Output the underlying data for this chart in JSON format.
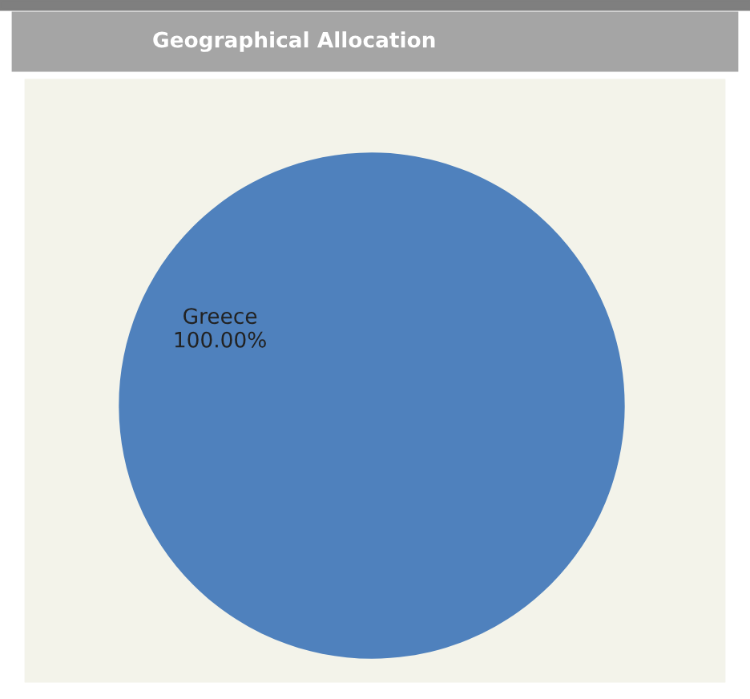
{
  "chart_data": {
    "type": "pie",
    "title": "Geographical Allocation",
    "categories": [
      "Greece"
    ],
    "values": [
      100
    ],
    "colors": [
      "#4f81bd"
    ],
    "value_labels": [
      "100.00%"
    ]
  }
}
